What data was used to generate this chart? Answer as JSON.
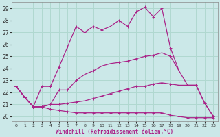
{
  "xlabel": "Windchill (Refroidissement éolien,°C)",
  "background_color": "#cbe8e8",
  "grid_color": "#b0d8d0",
  "line_color": "#aa2288",
  "x_ticks": [
    0,
    1,
    2,
    3,
    4,
    5,
    6,
    7,
    8,
    9,
    10,
    11,
    12,
    13,
    14,
    15,
    16,
    17,
    18,
    19,
    20,
    21,
    22,
    23
  ],
  "y_ticks": [
    20,
    21,
    22,
    23,
    24,
    25,
    26,
    27,
    28,
    29
  ],
  "xlim": [
    -0.5,
    23.5
  ],
  "ylim": [
    19.6,
    29.5
  ],
  "series": [
    {
      "x": [
        0,
        1,
        2,
        3,
        4,
        5,
        6,
        7,
        8,
        9,
        10,
        11,
        12,
        13,
        14,
        15,
        16,
        17,
        18,
        19
      ],
      "y": [
        22.5,
        21.6,
        20.8,
        22.5,
        22.5,
        24.1,
        25.8,
        27.5,
        27.0,
        27.5,
        27.2,
        27.5,
        28.0,
        27.5,
        28.7,
        29.1,
        28.3,
        29.0,
        25.7,
        23.8
      ]
    },
    {
      "x": [
        0,
        1,
        2,
        3,
        4,
        5,
        6,
        7,
        8,
        9,
        10,
        11,
        12,
        13,
        14,
        15,
        16,
        17,
        18,
        19,
        20,
        21,
        22,
        23
      ],
      "y": [
        22.5,
        21.6,
        20.8,
        20.8,
        21.0,
        22.2,
        22.2,
        23.0,
        23.5,
        23.8,
        24.2,
        24.4,
        24.5,
        24.6,
        24.8,
        25.0,
        25.1,
        25.3,
        25.0,
        23.8,
        22.6,
        22.6,
        21.1,
        20.0
      ]
    },
    {
      "x": [
        0,
        1,
        2,
        3,
        4,
        5,
        6,
        7,
        8,
        9,
        10,
        11,
        12,
        13,
        14,
        15,
        16,
        17,
        18,
        19,
        20,
        21,
        22,
        23
      ],
      "y": [
        22.5,
        21.6,
        20.8,
        20.8,
        21.0,
        21.0,
        21.1,
        21.2,
        21.3,
        21.5,
        21.7,
        21.9,
        22.1,
        22.3,
        22.5,
        22.5,
        22.7,
        22.8,
        22.7,
        22.6,
        22.6,
        22.6,
        21.1,
        20.0
      ]
    },
    {
      "x": [
        0,
        1,
        2,
        3,
        4,
        5,
        6,
        7,
        8,
        9,
        10,
        11,
        12,
        13,
        14,
        15,
        16,
        17,
        18,
        19,
        20,
        21,
        22,
        23
      ],
      "y": [
        22.5,
        21.6,
        20.8,
        20.8,
        20.6,
        20.5,
        20.4,
        20.3,
        20.3,
        20.3,
        20.3,
        20.3,
        20.3,
        20.3,
        20.3,
        20.3,
        20.3,
        20.3,
        20.1,
        20.0,
        19.9,
        19.9,
        19.9,
        19.9
      ]
    }
  ]
}
